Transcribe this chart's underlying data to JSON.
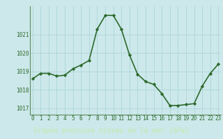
{
  "x": [
    0,
    1,
    2,
    3,
    4,
    5,
    6,
    7,
    8,
    9,
    10,
    11,
    12,
    13,
    14,
    15,
    16,
    17,
    18,
    19,
    20,
    21,
    22,
    23
  ],
  "y": [
    1018.6,
    1018.9,
    1018.9,
    1018.75,
    1018.8,
    1019.15,
    1019.35,
    1019.6,
    1021.3,
    1022.05,
    1022.05,
    1021.3,
    1019.9,
    1018.85,
    1018.45,
    1018.3,
    1017.8,
    1017.15,
    1017.15,
    1017.2,
    1017.25,
    1018.2,
    1018.9,
    1019.4
  ],
  "line_color": "#2d6a2d",
  "marker": "D",
  "marker_size": 2.2,
  "bg_color": "#cce8ea",
  "grid_color": "#b0d8dc",
  "xlabel": "Graphe pression niveau de la mer (hPa)",
  "xlabel_color": "#2d6a2d",
  "xlabel_bg": "#4a7c4a",
  "yticks": [
    1017,
    1018,
    1019,
    1020,
    1021
  ],
  "xticks": [
    0,
    1,
    2,
    3,
    4,
    5,
    6,
    7,
    8,
    9,
    10,
    11,
    12,
    13,
    14,
    15,
    16,
    17,
    18,
    19,
    20,
    21,
    22,
    23
  ],
  "ylim": [
    1016.65,
    1022.55
  ],
  "xlim": [
    -0.3,
    23.3
  ],
  "tick_color": "#2d6a2d",
  "tick_fontsize": 5.5,
  "xlabel_fontsize": 7.0,
  "line_width": 1.2,
  "axis_color": "#5a8a5a"
}
